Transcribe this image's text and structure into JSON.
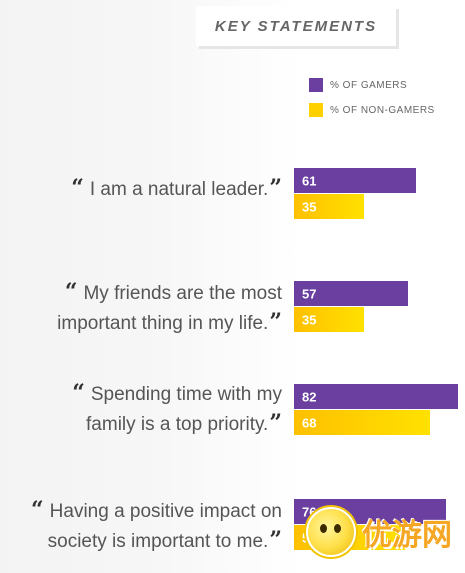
{
  "header": {
    "title": "KEY STATEMENTS"
  },
  "legend": [
    {
      "label": "% OF GAMERS",
      "color": "#6a3fa0"
    },
    {
      "label": "% OF NON-GAMERS",
      "color": "#ffd000"
    }
  ],
  "statements": [
    {
      "line1": "I am a natural leader.",
      "line2": ""
    },
    {
      "line1": "My friends are the most",
      "line2": "important thing in my life."
    },
    {
      "line1": "Spending time with my",
      "line2": "family is a top priority."
    },
    {
      "line1": "Having a positive impact on",
      "line2": "society is important to me."
    }
  ],
  "chart_data": {
    "type": "bar",
    "orientation": "horizontal",
    "categories": [
      "I am a natural leader.",
      "My friends are the most important thing in my life.",
      "Spending time with my family is a top priority.",
      "Having a positive impact on society is important to me."
    ],
    "series": [
      {
        "name": "% OF GAMERS",
        "values": [
          61,
          57,
          82,
          76
        ],
        "color": "#6a3fa0"
      },
      {
        "name": "% OF NON-GAMERS",
        "values": [
          35,
          35,
          68,
          56
        ],
        "color": "#ffd000"
      }
    ],
    "title": "KEY STATEMENTS",
    "xlim": [
      0,
      100
    ],
    "legend_position": "top-right",
    "grid": false
  },
  "watermark": {
    "text": "优游网"
  }
}
